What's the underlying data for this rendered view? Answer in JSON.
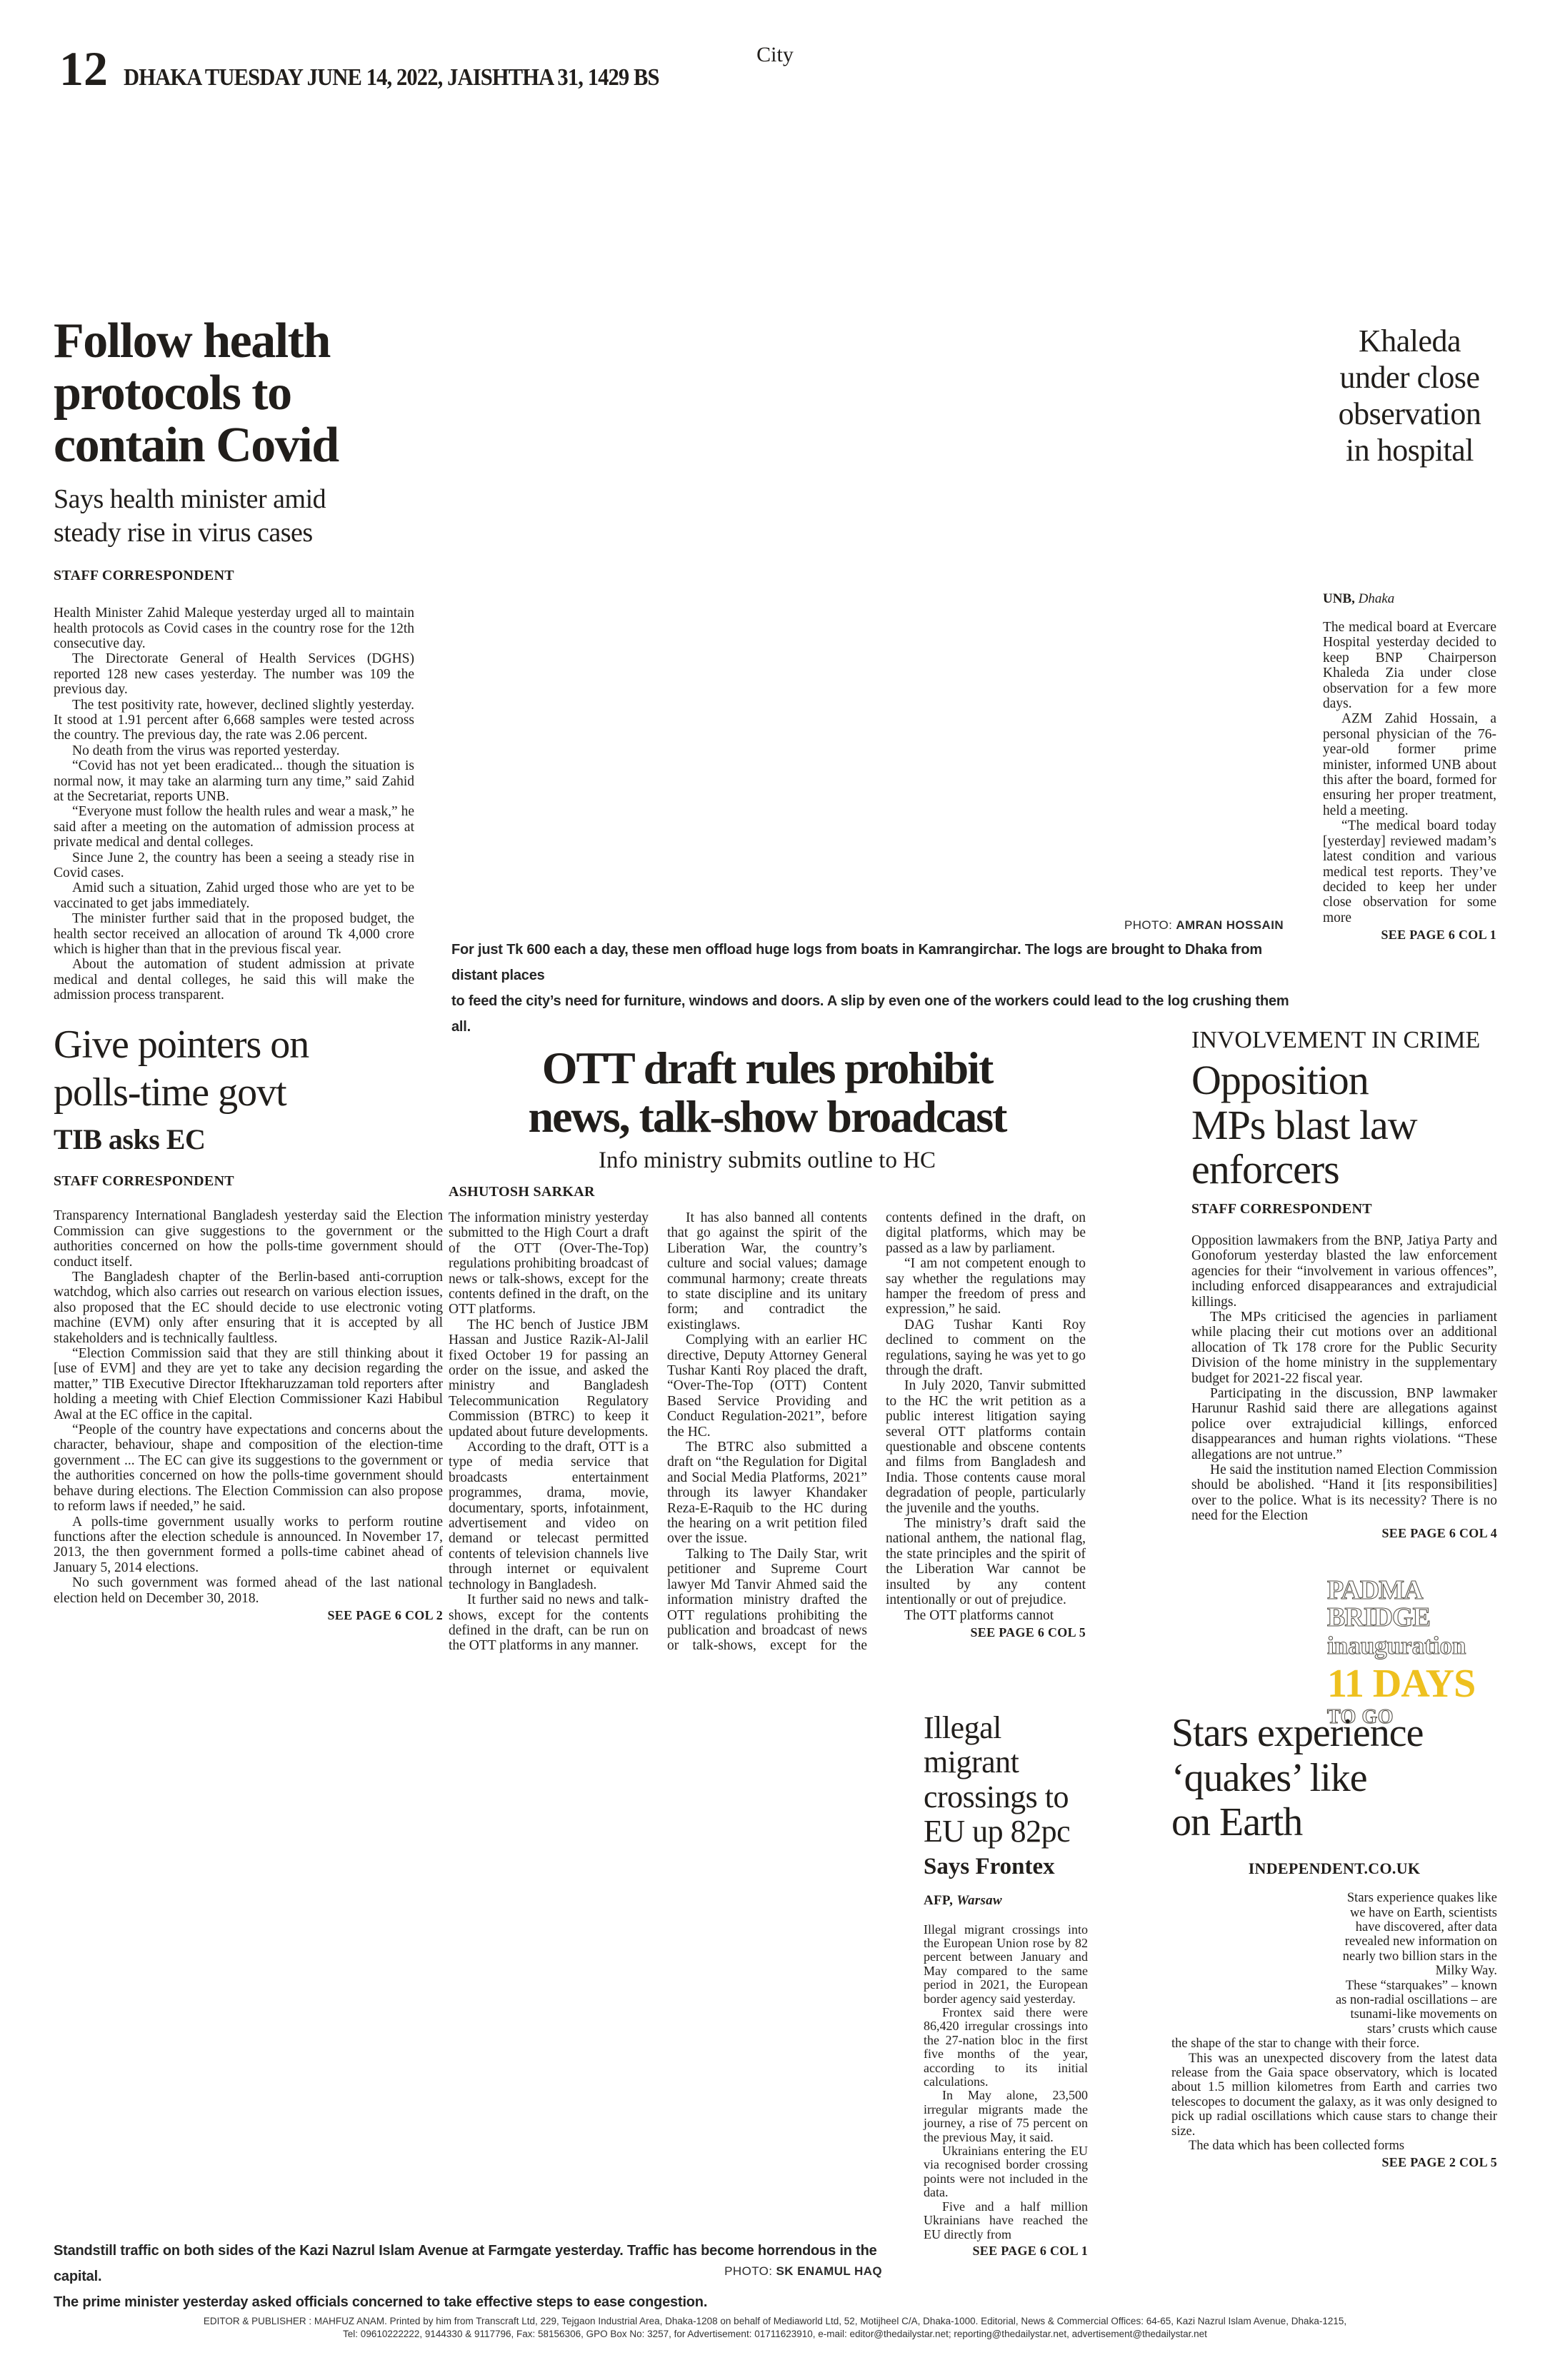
{
  "page": {
    "section": "City",
    "number": "12",
    "dateline": "DHAKA TUESDAY JUNE 14, 2022, JAISHTHA 31, 1429 BS"
  },
  "lead": {
    "headline_lines": [
      "Follow health",
      "protocols to",
      "contain Covid"
    ],
    "subhead_lines": [
      "Says health minister amid",
      "steady rise in virus cases"
    ],
    "byline": "STAFF CORRESPONDENT",
    "body": [
      "Health Minister Zahid Maleque yesterday urged all to maintain health protocols as Covid cases in the country rose for the 12th consecutive day.",
      "The Directorate General of Health Services (DGHS) reported 128 new cases yesterday. The number was 109 the previous day.",
      "The test positivity rate, however, declined slightly yesterday. It stood at 1.91 percent after 6,668 samples were tested across the country. The previous day, the rate was 2.06 percent.",
      "No death from the virus was reported yesterday.",
      "“Covid has not yet been eradicated...  though the situation is normal now, it may take an alarming turn any time,” said Zahid at the Secretariat, reports UNB.",
      "“Everyone must follow the health rules and wear a mask,” he said after a meeting on the automation of admission process at private medical and dental colleges.",
      "Since June 2, the country has been a seeing a steady rise in Covid cases.",
      "Amid such a situation, Zahid urged those who are yet to be vaccinated to get jabs immediately.",
      "The minister further said that in the proposed budget, the health sector received an allocation of around Tk 4,000 crore which is higher than that in the previous fiscal year.",
      "About the automation of student admission at private medical and dental colleges, he said this will make the admission process transparent."
    ]
  },
  "khaleda": {
    "headline_lines": [
      "Khaleda",
      "under close",
      "observation",
      "in hospital"
    ],
    "agency": "UNB,",
    "place": "Dhaka",
    "body": [
      "The medical board at Evercare Hospital yesterday decided to keep BNP Chairperson Khaleda Zia under close observation for a few more days.",
      "AZM Zahid Hossain, a personal physician of the 76-year-old former prime minister, informed UNB about this after the board, formed for ensuring her proper treatment, held a meeting.",
      "“The medical board today [yesterday] reviewed madam’s latest condition and various medical test reports. They’ve decided to keep her under close observation for some more"
    ],
    "jump": "SEE PAGE 6 COL 1"
  },
  "main_photo": {
    "credit_label": "PHOTO:",
    "credit_name": "AMRAN HOSSAIN",
    "caption_lines": [
      "For just Tk 600 each a day, these men offload huge logs from boats in Kamrangirchar. The logs are brought to Dhaka from distant places",
      "to feed the city’s need for furniture, windows and doors. A slip by even one of the workers could lead to the log crushing them all."
    ]
  },
  "tib": {
    "headline_lines": [
      "Give pointers on",
      "polls-time govt"
    ],
    "deck": "TIB asks EC",
    "byline": "STAFF CORRESPONDENT",
    "body": [
      "Transparency International Bangladesh yesterday said the Election Commission can give suggestions to the government or the authorities concerned on how the polls-time government should conduct itself.",
      "The Bangladesh chapter of the Berlin-based anti-corruption watchdog, which also carries out research on various election issues, also proposed that the EC should decide to use electronic voting machine (EVM) only after ensuring that it is accepted by all stakeholders and is technically faultless.",
      "“Election Commission said that they are still thinking about it [use of EVM] and they are yet to take any decision regarding the matter,” TIB Executive Director Iftekharuzzaman told reporters after holding a meeting with Chief Election Commissioner Kazi Habibul Awal at the EC office in the capital.",
      "“People of the country have expectations and concerns about the character, behaviour, shape and composition of the election-time government ... The EC can give its suggestions to the government or the authorities concerned on how the polls-time government should behave during elections. The Election Commission can also propose to reform laws if needed,” he said.",
      "A polls-time government usually works to perform routine functions after the election schedule is announced. In November 17, 2013, the then government formed a polls-time cabinet ahead of January 5, 2014 elections.",
      "No such government was formed ahead of the last national election held on December 30, 2018."
    ],
    "jump": "SEE PAGE 6 COL 2"
  },
  "ott": {
    "headline_lines": [
      "OTT draft rules prohibit",
      "news, talk-show broadcast"
    ],
    "subhead": "Info ministry submits outline to HC",
    "byline": "ASHUTOSH SARKAR",
    "body": [
      "The information ministry yesterday submitted to the High Court a draft of the OTT (Over-The-Top) regulations prohibiting broadcast of news or talk-shows, except for the contents defined in the draft, on the OTT platforms.",
      "The HC bench of Justice JBM Hassan and Justice Razik-Al-Jalil fixed October 19 for passing an order on the issue, and asked the ministry and Bangladesh Telecommunication Regulatory Commission (BTRC) to keep it updated about future developments.",
      "According to the draft, OTT is a type of media service that broadcasts entertainment programmes, drama, movie, documentary, sports, infotainment, advertisement and video on demand or telecast permitted contents of television channels live through internet or equivalent technology in Bangladesh.",
      "It further said no news and talk-shows, except for the contents defined in the draft, can be run on the OTT platforms in any manner.",
      "It has also banned all contents that go against the spirit of the Liberation War, the country’s culture and social values; damage communal harmony; create threats to state discipline and its unitary form; and contradict the existinglaws.",
      "Complying with an earlier HC directive, Deputy Attorney General Tushar Kanti Roy placed the draft, “Over-The-Top (OTT) Content Based Service Providing and Conduct Regulation-2021”, before the HC.",
      "The BTRC also submitted a draft on “the Regulation for Digital and Social Media Platforms, 2021” through its lawyer Khandaker Reza-E-Raquib to the HC during the hearing on a writ petition filed over the issue.",
      "Talking to The Daily Star, writ petitioner and Supreme Court lawyer Md Tanvir Ahmed said the information ministry drafted the OTT regulations prohibiting the publication and broadcast of news or talk-shows, except for the contents defined in the draft, on digital platforms, which may be passed as a law by parliament.",
      "“I am not competent enough to say whether the regulations may hamper the freedom of press and expression,” he said.",
      "DAG Tushar Kanti Roy declined to comment on the regulations, saying he was yet to go through the draft.",
      "In July 2020, Tanvir submitted to the HC the writ petition as a public interest litigation saying several OTT platforms contain questionable and obscene contents and films from Bangladesh and India. Those contents cause moral degradation of people, particularly the juvenile and the youths.",
      "The ministry’s draft said the national anthem, the national flag, the state principles and the spirit of the Liberation War cannot be insulted by any content intentionally or out of prejudice.",
      "The OTT platforms cannot"
    ],
    "jump": "SEE PAGE 6 COL 5"
  },
  "opposition": {
    "kicker": "INVOLVEMENT IN CRIME",
    "headline_lines": [
      "Opposition",
      "MPs blast law",
      "enforcers"
    ],
    "byline": "STAFF CORRESPONDENT",
    "body": [
      "Opposition lawmakers from the BNP, Jatiya Party and Gonoforum yesterday blasted the law enforcement agencies for their “involvement in various offences”, including enforced disappearances and extrajudicial killings.",
      "The MPs criticised the agencies in parliament while placing their cut motions over an additional allocation of Tk 178 crore for the Public Security Division of the home ministry in the supplementary budget for 2021-22 fiscal year.",
      "Participating in the discussion, BNP lawmaker Harunur Rashid said there are allegations against police over extrajudicial killings, enforced disappearances and human rights violations. “These allegations are not untrue.”",
      "He said the institution named Election Commission should be abolished. “Hand it [its responsibilities] over to the police. What is its necessity? There is no need for the Election"
    ],
    "jump": "SEE PAGE 6 COL 4"
  },
  "padma": {
    "line1": "PADMA BRIDGE",
    "line2": "inauguration",
    "line3": "11 DAYS",
    "line4": "TO GO",
    "accent_color": "#eec01f",
    "text_color": "#ffffff"
  },
  "migrant": {
    "headline_lines": [
      "Illegal migrant",
      "crossings to",
      "EU up 82pc"
    ],
    "deck": "Says Frontex",
    "agency": "AFP,",
    "place": "Warsaw",
    "body": [
      "Illegal migrant crossings into the European Union rose by 82 percent between January and May compared to the same period in 2021, the European border agency said yesterday.",
      "Frontex said there were 86,420 irregular crossings into the 27-nation bloc in the first five months of the year, according to its initial calculations.",
      "In May alone, 23,500 irregular migrants made the journey, a rise of 75 percent on the previous May, it said.",
      "Ukrainians entering the EU via recognised border crossing points were not included in the data.",
      "Five and a half million Ukrainians have reached the EU directly from"
    ],
    "jump": "SEE PAGE 6 COL 1"
  },
  "stars": {
    "headline_lines": [
      "Stars experience",
      "‘quakes’ like",
      "on Earth"
    ],
    "byline": "INDEPENDENT.CO.UK",
    "body_intro": [
      "Stars experience quakes like we have on Earth, scientists have discovered, after data revealed new information on nearly two billion stars in the Milky Way.",
      "These “starquakes” – known as non-radial oscillations – are tsunami-like movements on stars’ crusts which cause"
    ],
    "body_rest": [
      "the shape of the star to change with their force.",
      "This was an unexpected discovery from the latest data release from the Gaia space observatory, which is located about 1.5 million kilometres from Earth and carries two telescopes to document the galaxy, as it was only designed to pick up radial oscillations which cause stars to change their size.",
      "The data which has been collected forms"
    ],
    "jump": "SEE PAGE 2 COL 5"
  },
  "bottom_photo": {
    "credit_label": "PHOTO:",
    "credit_name": "SK ENAMUL HAQ",
    "caption_lines": [
      "Standstill traffic on both sides of the Kazi Nazrul Islam Avenue at Farmgate yesterday. Traffic has become horrendous in the capital.",
      "The prime minister yesterday asked officials concerned to take effective steps to ease congestion."
    ]
  },
  "footer": {
    "line1": "EDITOR & PUBLISHER : MAHFUZ ANAM. Printed by him from Transcraft Ltd, 229, Tejgaon Industrial Area, Dhaka-1208 on behalf of Mediaworld Ltd, 52, Motijheel C/A, Dhaka-1000. Editorial, News & Commercial Offices: 64-65, Kazi Nazrul Islam Avenue, Dhaka-1215,",
    "line2": "Tel: 09610222222, 9144330 & 9117796, Fax: 58156306, GPO Box No: 3257, for Advertisement: 01711623910, e-mail: editor@thedailystar.net; reporting@thedailystar.net, advertisement@thedailystar.net"
  }
}
